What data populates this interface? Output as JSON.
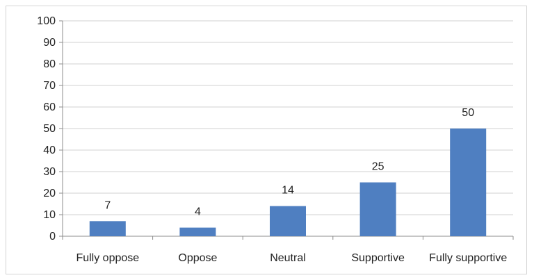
{
  "chart_data": {
    "type": "bar",
    "categories": [
      "Fully oppose",
      "Oppose",
      "Neutral",
      "Supportive",
      "Fully supportive"
    ],
    "values": [
      7,
      4,
      14,
      25,
      50
    ],
    "data_labels": [
      "7",
      "4",
      "14",
      "25",
      "50"
    ],
    "ylim": [
      0,
      100
    ],
    "yticks": [
      0,
      10,
      20,
      30,
      40,
      50,
      60,
      70,
      80,
      90,
      100
    ],
    "grid": true,
    "legend": "none",
    "bar_color": "#4f7fc1",
    "grid_color": "#d0d0d0"
  }
}
